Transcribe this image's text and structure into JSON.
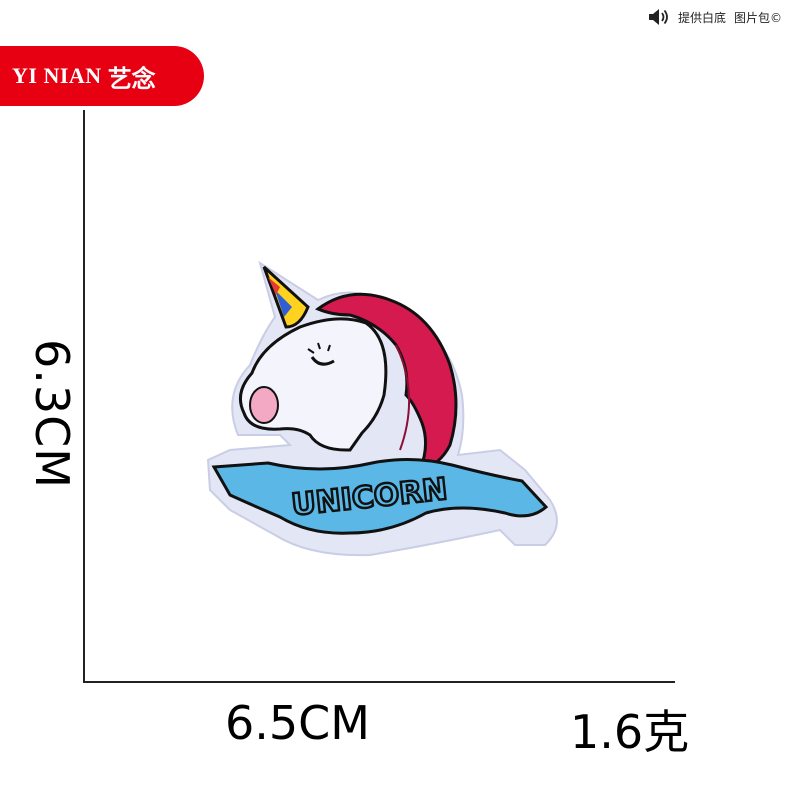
{
  "brand": {
    "latin": "YI NIAN",
    "chinese": "艺念",
    "color": "#e60012"
  },
  "notice": {
    "icon": "speaker-icon",
    "text_1": "提供白底",
    "text_2": "图片包©"
  },
  "dimensions": {
    "height": "6.3CM",
    "width": "6.5CM",
    "weight": "1.6克"
  },
  "patch": {
    "text": "UNICORN",
    "colors": {
      "felt": "#e3e6f5",
      "mane": "#d41a4f",
      "ribbon": "#5bb8e6",
      "outline": "#111111",
      "cheek": "#f3a9c4"
    }
  }
}
